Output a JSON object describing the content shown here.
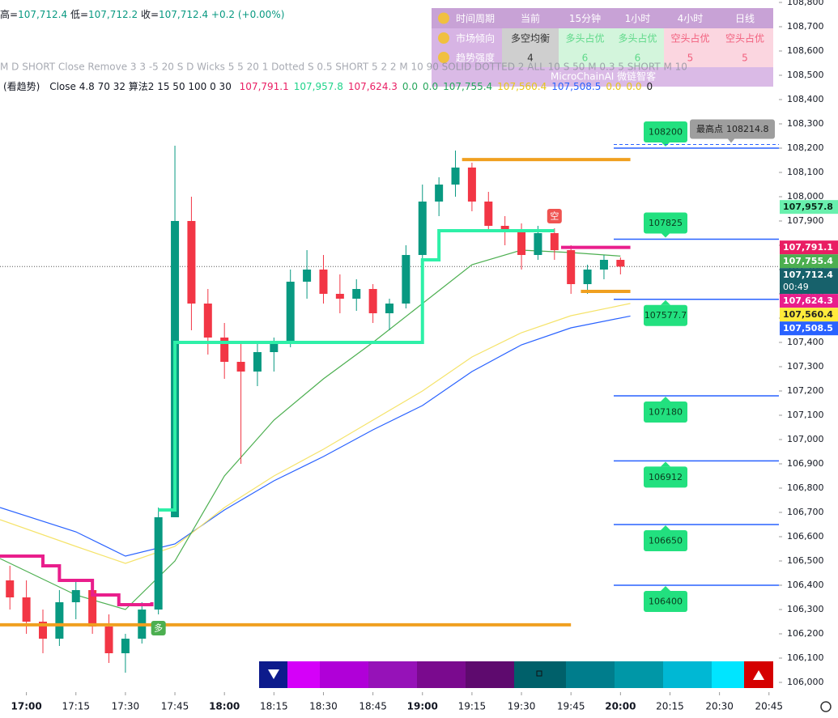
{
  "header": {
    "ohlc": [
      {
        "label": "高=",
        "value": "107,712.4"
      },
      {
        "label": "低=",
        "value": "107,712.2"
      },
      {
        "label": "收=",
        "value": "107,712.4"
      }
    ],
    "change": "+0.2 (+0.00%)",
    "settings_line": "M D SHORT Close Remove 3 3 -5 20 S D Wicks 5 5 20 1 Dotted S 0.5 SHORT 5 2 2 M 10 90 SOLID DOTTED 2 ALL 10 S 50 M 0.3 5 SHORT M 10",
    "indicator_name": "(看趋势)",
    "indicator_params": "Close 4.8 70 32 算法2 15 50 100 0 30",
    "indicator_values": [
      {
        "text": "107,791.1",
        "color": "#e91e63"
      },
      {
        "text": "107,957.8",
        "color": "#1fd38a"
      },
      {
        "text": "107,624.3",
        "color": "#e91e63"
      },
      {
        "text": "0.0",
        "color": "#26a65b"
      },
      {
        "text": "0.0",
        "color": "#26a65b"
      },
      {
        "text": "107,755.4",
        "color": "#26a65b"
      },
      {
        "text": "107,560.4",
        "color": "#e6c619"
      },
      {
        "text": "107,508.5",
        "color": "#2962ff"
      },
      {
        "text": "0.0",
        "color": "#e6c619"
      },
      {
        "text": "0.0",
        "color": "#e6c619"
      },
      {
        "text": "0",
        "color": "#222222"
      }
    ]
  },
  "table": {
    "header": [
      "时间周期",
      "当前",
      "15分钟",
      "1小时",
      "4小时",
      "日线"
    ],
    "rows": [
      [
        "市场倾向",
        "多空均衡",
        "多头占优",
        "多头占优",
        "空头占优",
        "空头占优"
      ],
      [
        "趋势强度",
        "4",
        "6",
        "6",
        "5",
        "5"
      ]
    ]
  },
  "watermark": "MicroChainAI 微链智客",
  "chart_data": {
    "type": "candlestick",
    "xlim": [
      "16:52",
      "20:48"
    ],
    "ylim": [
      105960,
      108810
    ],
    "xticks": [
      "17:00",
      "17:15",
      "17:30",
      "17:45",
      "18:00",
      "18:15",
      "18:30",
      "18:45",
      "19:00",
      "19:15",
      "19:30",
      "19:45",
      "20:00",
      "20:15",
      "20:30",
      "20:45"
    ],
    "yticks": [
      {
        "value": 106000,
        "label": "106,000"
      },
      {
        "value": 106100,
        "label": "106,100"
      },
      {
        "value": 106200,
        "label": "106,200"
      },
      {
        "value": 106300,
        "label": "106,300"
      },
      {
        "value": 106400,
        "label": "106,400"
      },
      {
        "value": 106500,
        "label": "106,500"
      },
      {
        "value": 106600,
        "label": "106,600"
      },
      {
        "value": 106700,
        "label": "106,700"
      },
      {
        "value": 106800,
        "label": "106,800"
      },
      {
        "value": 106900,
        "label": "106,900"
      },
      {
        "value": 107000,
        "label": "107,000"
      },
      {
        "value": 107100,
        "label": "107,100"
      },
      {
        "value": 107200,
        "label": "107,200"
      },
      {
        "value": 107300,
        "label": "107,300"
      },
      {
        "value": 107400,
        "label": "107,400"
      },
      {
        "value": 107500,
        "label": "107,500"
      },
      {
        "value": 107600,
        "label": "107,600"
      },
      {
        "value": 107700,
        "label": "107,700"
      },
      {
        "value": 107800,
        "label": "107,800"
      },
      {
        "value": 107900,
        "label": "107,900"
      },
      {
        "value": 108000,
        "label": "108,000"
      },
      {
        "value": 108100,
        "label": "108,100"
      },
      {
        "value": 108200,
        "label": "108,200"
      },
      {
        "value": 108300,
        "label": "108,300"
      },
      {
        "value": 108400,
        "label": "108,400"
      },
      {
        "value": 108500,
        "label": "108,500"
      },
      {
        "value": 108600,
        "label": "108,600"
      },
      {
        "value": 108700,
        "label": "108,700"
      },
      {
        "value": 108800,
        "label": "108,800"
      }
    ],
    "grid": false,
    "up_color": "#089981",
    "down_color": "#f23645",
    "candles": {
      "x": [
        "16:55",
        "17:00",
        "17:05",
        "17:10",
        "17:15",
        "17:20",
        "17:25",
        "17:30",
        "17:35",
        "17:40",
        "17:45",
        "17:50",
        "17:55",
        "18:00",
        "18:05",
        "18:10",
        "18:15",
        "18:20",
        "18:25",
        "18:30",
        "18:35",
        "18:40",
        "18:45",
        "18:50",
        "18:55",
        "19:00",
        "19:05",
        "19:10",
        "19:15",
        "19:20",
        "19:25",
        "19:30",
        "19:35",
        "19:40",
        "19:45",
        "19:50",
        "19:55",
        "20:00"
      ],
      "open": [
        106420,
        106350,
        106250,
        106180,
        106330,
        106380,
        106230,
        106120,
        106180,
        106300,
        106680,
        107900,
        107560,
        107420,
        107320,
        107280,
        107360,
        107400,
        107650,
        107700,
        107600,
        107580,
        107620,
        107520,
        107560,
        107760,
        107980,
        108050,
        108120,
        107980,
        107880,
        107860,
        107760,
        107850,
        107780,
        107640,
        107700,
        107740
      ],
      "high": [
        106480,
        106420,
        106300,
        106380,
        106420,
        106400,
        106280,
        106200,
        106330,
        106720,
        108210,
        108000,
        107620,
        107480,
        107400,
        107400,
        107420,
        107700,
        107780,
        107760,
        107680,
        107660,
        107640,
        107580,
        107800,
        108050,
        108080,
        108190,
        108140,
        108020,
        107920,
        107890,
        107880,
        107870,
        107800,
        107720,
        107760,
        107750
      ],
      "low": [
        106300,
        106200,
        106120,
        106150,
        106260,
        106200,
        106080,
        106040,
        106160,
        106280,
        106700,
        107450,
        107350,
        107250,
        106900,
        107220,
        107280,
        107380,
        107580,
        107560,
        107520,
        107530,
        107480,
        107450,
        107540,
        107740,
        107920,
        108000,
        107940,
        107860,
        107800,
        107700,
        107740,
        107740,
        107600,
        107600,
        107660,
        107680
      ],
      "close": [
        106350,
        106250,
        106180,
        106330,
        106380,
        106230,
        106120,
        106180,
        106300,
        106680,
        107900,
        107560,
        107420,
        107320,
        107280,
        107360,
        107400,
        107650,
        107700,
        107600,
        107580,
        107620,
        107520,
        107560,
        107760,
        107980,
        108050,
        108120,
        107980,
        107880,
        107860,
        107760,
        107850,
        107780,
        107640,
        107700,
        107740,
        107712.4
      ]
    },
    "lines": [
      {
        "style": "smooth",
        "color": "#2962ff",
        "x": [
          "16:52",
          "17:15",
          "17:30",
          "17:45",
          "18:00",
          "18:15",
          "18:30",
          "18:45",
          "19:00",
          "19:15",
          "19:30",
          "19:45",
          "20:03"
        ],
        "values": [
          106720,
          106620,
          106520,
          106570,
          106710,
          106830,
          106930,
          107040,
          107140,
          107280,
          107390,
          107460,
          107508.5
        ]
      },
      {
        "style": "smooth",
        "color": "#f5e36a",
        "x": [
          "16:52",
          "17:15",
          "17:30",
          "17:45",
          "18:00",
          "18:15",
          "18:30",
          "18:45",
          "19:00",
          "19:15",
          "19:30",
          "19:45",
          "20:03"
        ],
        "values": [
          106670,
          106560,
          106490,
          106560,
          106720,
          106850,
          106960,
          107080,
          107200,
          107340,
          107440,
          107510,
          107560.4
        ]
      },
      {
        "style": "smooth",
        "color": "#4caf50",
        "x": [
          "16:52",
          "17:15",
          "17:30",
          "17:45",
          "18:00",
          "18:15",
          "18:30",
          "18:45",
          "19:00",
          "19:15",
          "19:30",
          "19:45",
          "20:00"
        ],
        "values": [
          106510,
          106360,
          106300,
          106500,
          106850,
          107080,
          107250,
          107400,
          107560,
          107720,
          107780,
          107770,
          107755.4
        ]
      },
      {
        "style": "step",
        "color": "#e91e8c",
        "x": [
          "16:52",
          "17:05",
          "17:10",
          "17:20",
          "17:28",
          "17:38"
        ],
        "values": [
          106520,
          106480,
          106420,
          106360,
          106320,
          106330
        ]
      },
      {
        "style": "step",
        "color": "#2ef0a8",
        "x": [
          "17:40",
          "17:45",
          "19:00",
          "19:05",
          "19:40"
        ],
        "values": [
          106710,
          107400,
          107740,
          107860,
          107860
        ]
      },
      {
        "style": "step",
        "color": "#e91e8c",
        "x": [
          "19:42",
          "20:03"
        ],
        "values": [
          107791.1,
          107791.1
        ]
      },
      {
        "style": "step",
        "color": "#f0a020",
        "x": [
          "16:52",
          "19:45"
        ],
        "values": [
          106237,
          106237
        ]
      },
      {
        "style": "step",
        "color": "#f0a020",
        "x": [
          "19:12",
          "20:03"
        ],
        "values": [
          108153,
          108153
        ]
      },
      {
        "style": "step",
        "color": "#f0a020",
        "x": [
          "19:48",
          "20:03"
        ],
        "values": [
          107610,
          107610
        ]
      }
    ],
    "signals": [
      {
        "x": "17:40",
        "label": "多",
        "color": "#4caf50",
        "position": "below"
      },
      {
        "x": "19:40",
        "label": "空",
        "color": "#ef5350",
        "position": "above"
      }
    ],
    "levels": {
      "color": "#2962ff",
      "box_color": "#22e07f",
      "values": [
        108200,
        107825,
        107577.7,
        107180,
        106912,
        106650,
        106400
      ]
    },
    "high_marker": {
      "label": "最高点",
      "value": 108214.8
    },
    "current_price": 107712.4,
    "price_tags": [
      {
        "value": 107957.8,
        "label": "107,957.8",
        "color": "#69f0ae",
        "text_color": "#0b2a1a"
      },
      {
        "value": 107791.1,
        "label": "107,791.1",
        "color": "#e91e63",
        "text_color": "#ffffff"
      },
      {
        "value": 107755.4,
        "label": "107,755.4",
        "color": "#4caf50",
        "text_color": "#ffffff"
      },
      {
        "value": 107712.4,
        "label": "107,712.4",
        "countdown": "00:49",
        "color": "#17616b",
        "text_color": "#ffffff"
      },
      {
        "value": 107624.3,
        "label": "107,624.3",
        "color": "#e91e8c",
        "text_color": "#ffffff"
      },
      {
        "value": 107560.4,
        "label": "107,560.4",
        "color": "#ffeb3b",
        "text_color": "#222222"
      },
      {
        "value": 107508.5,
        "label": "107,508.5",
        "color": "#2962ff",
        "text_color": "#ffffff"
      }
    ]
  }
}
